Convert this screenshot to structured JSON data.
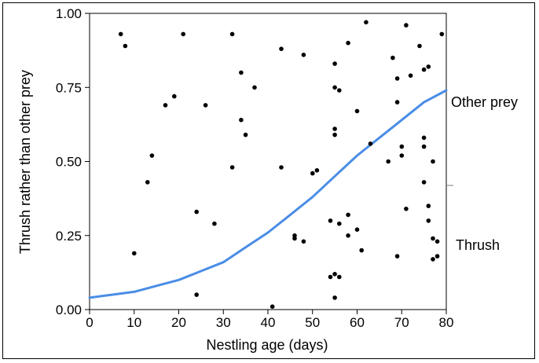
{
  "chart_data": {
    "type": "scatter",
    "xlabel": "Nestling age (days)",
    "ylabel": "Thrush rather than other prey",
    "xlim": [
      0,
      80
    ],
    "ylim": [
      0,
      1
    ],
    "xticks": [
      "0",
      "10",
      "20",
      "30",
      "40",
      "50",
      "60",
      "70",
      "80"
    ],
    "yticks": [
      "0.00",
      "0.25",
      "0.50",
      "0.75",
      "1.00"
    ],
    "right_labels": {
      "upper": "Other prey",
      "lower": "Thrush"
    },
    "colors": {
      "points": "#000000",
      "curve": "#4a8de6"
    },
    "points": [
      {
        "x": 7,
        "y": 0.93
      },
      {
        "x": 8,
        "y": 0.89
      },
      {
        "x": 10,
        "y": 0.19
      },
      {
        "x": 13,
        "y": 0.43
      },
      {
        "x": 14,
        "y": 0.52
      },
      {
        "x": 17,
        "y": 0.69
      },
      {
        "x": 19,
        "y": 0.72
      },
      {
        "x": 21,
        "y": 0.93
      },
      {
        "x": 24,
        "y": 0.33
      },
      {
        "x": 24,
        "y": 0.05
      },
      {
        "x": 26,
        "y": 0.69
      },
      {
        "x": 28,
        "y": 0.29
      },
      {
        "x": 32,
        "y": 0.93
      },
      {
        "x": 32,
        "y": 0.48
      },
      {
        "x": 34,
        "y": 0.8
      },
      {
        "x": 34,
        "y": 0.64
      },
      {
        "x": 35,
        "y": 0.59
      },
      {
        "x": 37,
        "y": 0.75
      },
      {
        "x": 41,
        "y": 0.01
      },
      {
        "x": 43,
        "y": 0.88
      },
      {
        "x": 43,
        "y": 0.48
      },
      {
        "x": 46,
        "y": 0.25
      },
      {
        "x": 46,
        "y": 0.24
      },
      {
        "x": 48,
        "y": 0.86
      },
      {
        "x": 48,
        "y": 0.23
      },
      {
        "x": 50,
        "y": 0.46
      },
      {
        "x": 51,
        "y": 0.47
      },
      {
        "x": 54,
        "y": 0.3
      },
      {
        "x": 54,
        "y": 0.11
      },
      {
        "x": 55,
        "y": 0.83
      },
      {
        "x": 55,
        "y": 0.75
      },
      {
        "x": 55,
        "y": 0.61
      },
      {
        "x": 55,
        "y": 0.59
      },
      {
        "x": 55,
        "y": 0.12
      },
      {
        "x": 55,
        "y": 0.04
      },
      {
        "x": 56,
        "y": 0.74
      },
      {
        "x": 56,
        "y": 0.29
      },
      {
        "x": 56,
        "y": 0.11
      },
      {
        "x": 58,
        "y": 0.9
      },
      {
        "x": 58,
        "y": 0.32
      },
      {
        "x": 58,
        "y": 0.25
      },
      {
        "x": 60,
        "y": 0.67
      },
      {
        "x": 60,
        "y": 0.27
      },
      {
        "x": 61,
        "y": 0.2
      },
      {
        "x": 62,
        "y": 0.97
      },
      {
        "x": 63,
        "y": 0.56
      },
      {
        "x": 67,
        "y": 0.5
      },
      {
        "x": 68,
        "y": 0.85
      },
      {
        "x": 69,
        "y": 0.78
      },
      {
        "x": 69,
        "y": 0.7
      },
      {
        "x": 69,
        "y": 0.18
      },
      {
        "x": 70,
        "y": 0.55
      },
      {
        "x": 70,
        "y": 0.52
      },
      {
        "x": 71,
        "y": 0.96
      },
      {
        "x": 71,
        "y": 0.34
      },
      {
        "x": 72,
        "y": 0.79
      },
      {
        "x": 74,
        "y": 0.89
      },
      {
        "x": 75,
        "y": 0.81
      },
      {
        "x": 75,
        "y": 0.58
      },
      {
        "x": 75,
        "y": 0.55
      },
      {
        "x": 75,
        "y": 0.43
      },
      {
        "x": 76,
        "y": 0.82
      },
      {
        "x": 76,
        "y": 0.35
      },
      {
        "x": 76,
        "y": 0.3
      },
      {
        "x": 77,
        "y": 0.5
      },
      {
        "x": 77,
        "y": 0.24
      },
      {
        "x": 77,
        "y": 0.17
      },
      {
        "x": 78,
        "y": 0.23
      },
      {
        "x": 78,
        "y": 0.18
      },
      {
        "x": 79,
        "y": 0.93
      }
    ],
    "curve": {
      "name": "",
      "x": [
        0,
        5,
        10,
        15,
        20,
        25,
        30,
        35,
        40,
        45,
        50,
        55,
        60,
        65,
        70,
        75,
        80
      ],
      "y": [
        0.04,
        0.05,
        0.06,
        0.08,
        0.1,
        0.13,
        0.16,
        0.21,
        0.26,
        0.32,
        0.38,
        0.45,
        0.52,
        0.58,
        0.64,
        0.7,
        0.74
      ]
    }
  }
}
